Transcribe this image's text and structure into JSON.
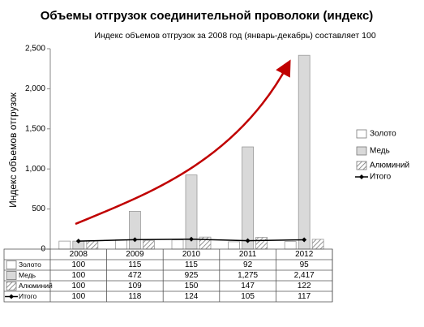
{
  "chart_data": {
    "type": "bar",
    "title": "Объемы отгрузок соединительной проволоки (индекс)",
    "subtitle": "Индекс объемов отгрузок за 2008 год (январь-декабрь) составляет 100",
    "y_label": "Индекс объемов отгрузок",
    "categories": [
      "2008",
      "2009",
      "2010",
      "2011",
      "2012"
    ],
    "series": [
      {
        "name": "Золото",
        "color": "#ffffff",
        "values": [
          100,
          115,
          115,
          92,
          95
        ]
      },
      {
        "name": "Медь",
        "color": "#d9d9d9",
        "values": [
          100,
          472,
          925,
          1275,
          2417
        ],
        "value_labels": [
          "100",
          "472",
          "925",
          "1,275",
          "2,417"
        ]
      },
      {
        "name": "Алюминий",
        "color": "hatch",
        "values": [
          100,
          109,
          150,
          147,
          122
        ]
      },
      {
        "name": "Итого",
        "color": "#000000",
        "type": "line",
        "values": [
          100,
          118,
          124,
          105,
          117
        ]
      }
    ],
    "ylim": [
      0,
      2500
    ],
    "yticks": [
      0,
      500,
      {
        "value": 1000,
        "label": "1,000"
      },
      {
        "value": 1500,
        "label": "1,500"
      },
      {
        "value": 2000,
        "label": "2,000"
      },
      {
        "value": 2500,
        "label": "2,500"
      }
    ],
    "grid": false,
    "legend": "right"
  }
}
